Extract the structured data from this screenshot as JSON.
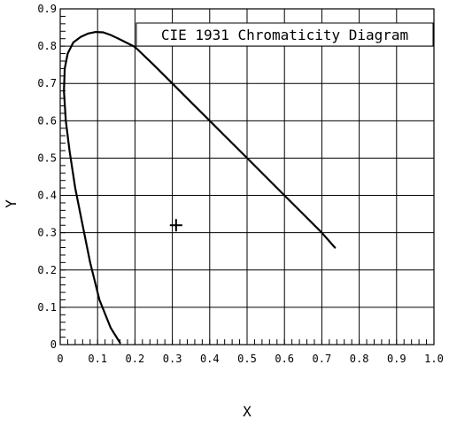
{
  "chart_data": {
    "type": "line",
    "title": "CIE 1931 Chromaticity Diagram",
    "xlabel": "X",
    "ylabel": "Y",
    "xlim": [
      0,
      1.0
    ],
    "ylim": [
      0,
      0.9
    ],
    "grid": true,
    "title_placement": "top-right",
    "x_ticks": [
      0,
      0.1,
      0.2,
      0.3,
      0.4,
      0.5,
      0.6,
      0.7,
      0.8,
      0.9,
      1.0
    ],
    "x_tick_labels": [
      "0",
      "0.1",
      "0.2",
      "0.3",
      "0.4",
      "0.5",
      "0.6",
      "0.7",
      "0.8",
      "0.9",
      "1.0"
    ],
    "y_ticks": [
      0,
      0.1,
      0.2,
      0.3,
      0.4,
      0.5,
      0.6,
      0.7,
      0.8,
      0.9
    ],
    "y_tick_labels": [
      "0",
      "0.1",
      "0.2",
      "0.3",
      "0.4",
      "0.5",
      "0.6",
      "0.7",
      "0.8",
      "0.9"
    ],
    "series": [
      {
        "x": [
          0.16,
          0.135,
          0.105,
          0.08,
          0.06,
          0.04,
          0.025,
          0.015,
          0.01,
          0.012,
          0.02,
          0.035,
          0.055,
          0.075,
          0.095,
          0.115,
          0.135,
          0.16,
          0.2,
          0.25,
          0.3,
          0.35,
          0.4,
          0.45,
          0.5,
          0.55,
          0.6,
          0.65,
          0.7,
          0.735
        ],
        "y": [
          0.005,
          0.045,
          0.12,
          0.22,
          0.32,
          0.42,
          0.52,
          0.6,
          0.68,
          0.74,
          0.78,
          0.81,
          0.825,
          0.834,
          0.838,
          0.837,
          0.83,
          0.818,
          0.798,
          0.75,
          0.7,
          0.65,
          0.6,
          0.55,
          0.5,
          0.45,
          0.4,
          0.35,
          0.3,
          0.26
        ]
      }
    ],
    "markers": [
      {
        "symbol": "+",
        "x": 0.31,
        "y": 0.32
      }
    ]
  }
}
